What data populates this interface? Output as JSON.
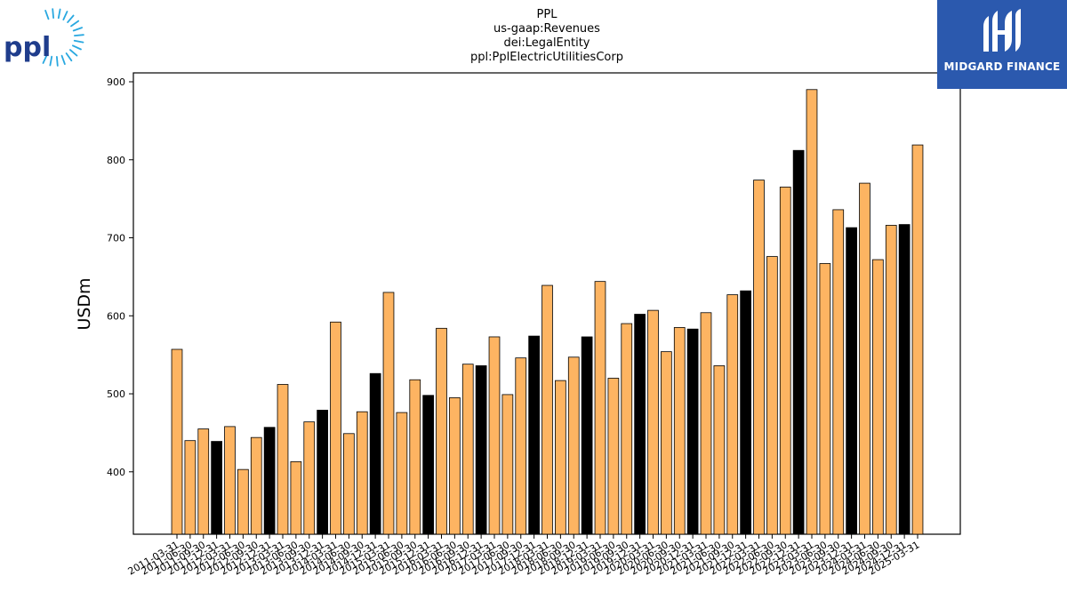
{
  "chart_data": {
    "type": "bar",
    "title_lines": [
      "PPL",
      "us-gaap:Revenues",
      "dei:LegalEntity",
      "ppl:PplElectricUtilitiesCorp"
    ],
    "xlabel": "",
    "ylabel": "USDm",
    "ylim": [
      320,
      900
    ],
    "yticks": [
      400,
      500,
      600,
      700,
      800,
      900
    ],
    "grid": false,
    "colors": {
      "normal": "#fdb462",
      "highlight": "#000000",
      "edge": "#000000"
    },
    "categories": [
      "2011-03-31",
      "2011-06-30",
      "2011-09-30",
      "2011-12-31",
      "2012-03-31",
      "2012-06-30",
      "2012-09-30",
      "2012-12-31",
      "2013-03-31",
      "2013-06-30",
      "2013-09-30",
      "2013-12-31",
      "2014-03-31",
      "2014-06-30",
      "2014-09-30",
      "2014-12-31",
      "2015-03-31",
      "2015-06-30",
      "2015-09-30",
      "2015-12-31",
      "2016-03-31",
      "2016-06-30",
      "2016-09-30",
      "2016-12-31",
      "2017-03-31",
      "2017-06-30",
      "2017-09-30",
      "2017-12-31",
      "2018-03-31",
      "2018-06-30",
      "2018-09-30",
      "2018-12-31",
      "2019-03-31",
      "2019-06-30",
      "2019-09-30",
      "2019-12-31",
      "2020-03-31",
      "2020-06-30",
      "2020-09-30",
      "2020-12-31",
      "2021-03-31",
      "2021-06-30",
      "2021-09-30",
      "2021-12-31",
      "2022-03-31",
      "2022-06-30",
      "2022-09-30",
      "2022-12-31",
      "2023-03-31",
      "2023-06-30",
      "2023-09-30",
      "2023-12-31",
      "2024-03-31",
      "2024-06-30",
      "2024-09-30",
      "2024-12-31",
      "2025-03-31"
    ],
    "values": [
      557,
      440,
      455,
      439,
      458,
      403,
      444,
      457,
      512,
      413,
      464,
      479,
      592,
      449,
      477,
      526,
      630,
      476,
      518,
      498,
      584,
      495,
      538,
      536,
      573,
      499,
      546,
      574,
      639,
      517,
      547,
      573,
      644,
      520,
      590,
      602,
      607,
      554,
      585,
      583,
      604,
      536,
      627,
      632,
      774,
      676,
      765,
      812,
      890,
      667,
      736,
      713,
      770,
      672,
      716,
      717,
      819
    ],
    "highlight_indices": [
      3,
      7,
      11,
      15,
      19,
      23,
      27,
      31,
      35,
      39,
      43,
      47,
      51,
      55
    ]
  },
  "logos": {
    "left_text": "ppl",
    "left_color": "#1f3d8c",
    "left_ray_color": "#29a8e0",
    "right_text": "MIDGARD FINANCE",
    "right_bg": "#2b59ae"
  }
}
